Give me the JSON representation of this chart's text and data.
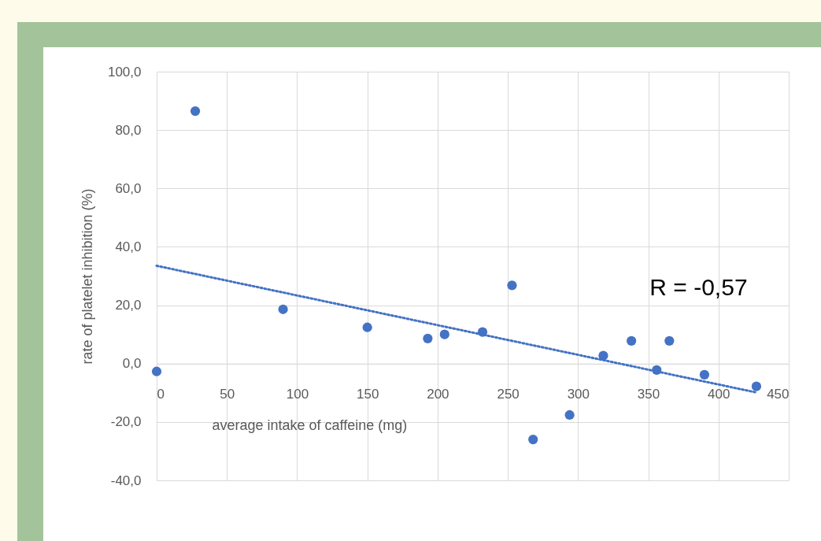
{
  "chart_data": {
    "type": "scatter",
    "xlabel": "average intake of caffeine (mg)",
    "ylabel": "rate of platelet inhibition (%)",
    "x": [
      0,
      27.5,
      90,
      150,
      193,
      205,
      232,
      253,
      268,
      294,
      318,
      338,
      356,
      365,
      390,
      427
    ],
    "series": [
      {
        "color": "#4472c4",
        "marker": "circle",
        "values": [
          -2.7,
          86.5,
          18.6,
          12.4,
          8.6,
          10,
          10.8,
          26.8,
          -26,
          -17.6,
          2.7,
          7.8,
          -2.2,
          7.8,
          -3.8,
          -7.8
        ]
      },
      {
        "type": "line",
        "color": "#4472c4",
        "line_style": "dotted",
        "marker": "none",
        "x": [
          0,
          427
        ],
        "values": [
          33.5,
          -9.9
        ]
      }
    ],
    "xlim": [
      0,
      450
    ],
    "xticks": [
      0,
      50,
      100,
      150,
      200,
      250,
      300,
      350,
      400,
      450
    ],
    "ylim": [
      -40,
      100
    ],
    "yticks": [
      {
        "value": -40,
        "label": "-40,0"
      },
      {
        "value": -20,
        "label": "-20,0"
      },
      {
        "value": 0,
        "label": "0,0"
      },
      {
        "value": 20,
        "label": "20,0"
      },
      {
        "value": 40,
        "label": "40,0"
      },
      {
        "value": 60,
        "label": "60,0"
      },
      {
        "value": 80,
        "label": "80,0"
      },
      {
        "value": 100,
        "label": "100,0"
      }
    ],
    "grid": true,
    "annotations": [
      "R = -0,57"
    ]
  }
}
